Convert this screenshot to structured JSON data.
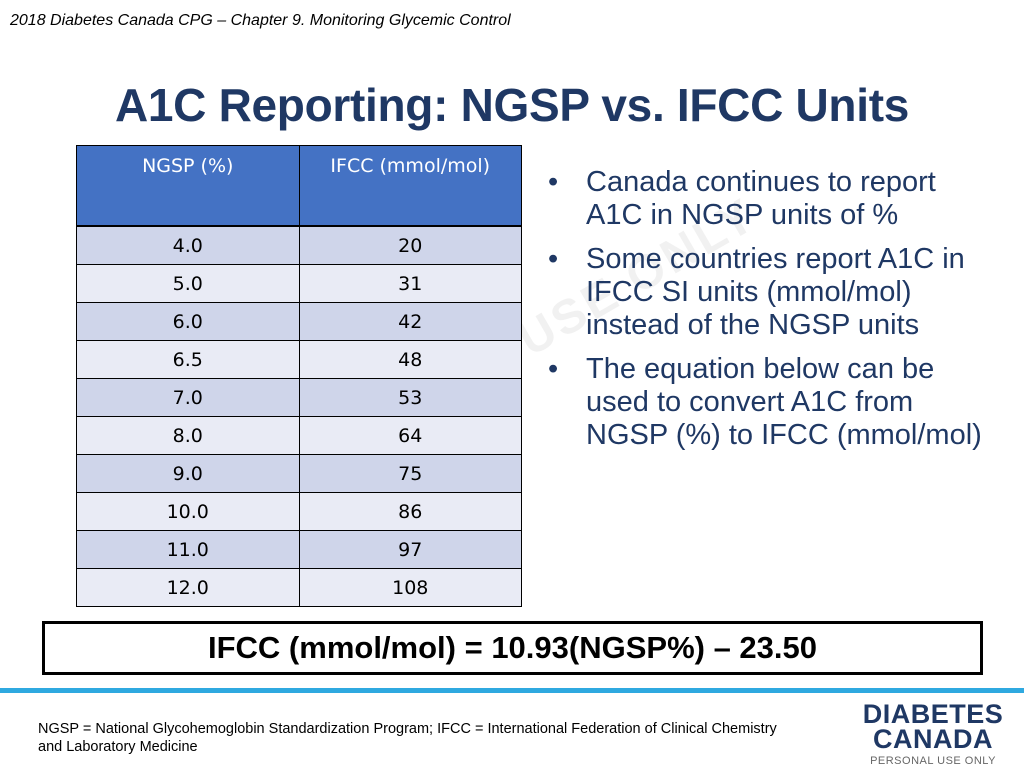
{
  "header": {
    "caption": "2018 Diabetes Canada CPG – Chapter 9.  Monitoring Glycemic Control"
  },
  "title": "A1C Reporting:  NGSP vs. IFCC Units",
  "watermark": "USE ONLY",
  "table": {
    "headers": [
      "NGSP (%)",
      "IFCC (mmol/mol)"
    ],
    "rows": [
      [
        "4.0",
        "20"
      ],
      [
        "5.0",
        "31"
      ],
      [
        "6.0",
        "42"
      ],
      [
        "6.5",
        "48"
      ],
      [
        "7.0",
        "53"
      ],
      [
        "8.0",
        "64"
      ],
      [
        "9.0",
        "75"
      ],
      [
        "10.0",
        "86"
      ],
      [
        "11.0",
        "97"
      ],
      [
        "12.0",
        "108"
      ]
    ]
  },
  "bullets": [
    "Canada continues to report A1C in NGSP units of %",
    "Some countries report A1C in IFCC SI units (mmol/mol) instead of the NGSP units",
    "The equation below can be used to convert A1C from NGSP (%) to IFCC (mmol/mol)"
  ],
  "bullet_glyph": "•",
  "equation": "IFCC (mmol/mol) = 10.93(NGSP%) – 23.50",
  "footnote": "NGSP = National Glycohemoglobin Standardization Program; IFCC = International Federation of Clinical Chemistry and Laboratory Medicine",
  "logo": {
    "line1": "DIABETES",
    "line2": "CANADA",
    "tagline": "PERSONAL USE ONLY"
  },
  "colors": {
    "title": "#1f3864",
    "table_header": "#4472c4",
    "row_odd": "#cfd5ea",
    "row_even": "#e9ebf5",
    "accent_bar": "#2fa9e0"
  }
}
